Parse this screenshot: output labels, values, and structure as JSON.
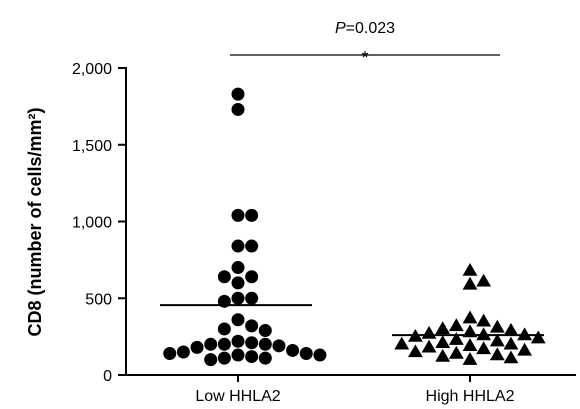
{
  "chart_data": {
    "type": "scatter",
    "ylabel": "CD8 (number of cells/mm²)",
    "categories": [
      "Low HHLA2",
      "High HHLA2"
    ],
    "yticks": [
      "0",
      "500",
      "1,000",
      "1,500",
      "2,000"
    ],
    "ylim": [
      0,
      2000
    ],
    "series": [
      {
        "category": "Low HHLA2",
        "marker": "circle",
        "mean": 455,
        "values": [
          1830,
          1730,
          1040,
          1040,
          840,
          840,
          700,
          640,
          640,
          600,
          500,
          500,
          480,
          360,
          320,
          300,
          290,
          220,
          210,
          200,
          200,
          200,
          190,
          180,
          160,
          150,
          140,
          140,
          130,
          130,
          120,
          110,
          110,
          100
        ]
      },
      {
        "category": "High HHLA2",
        "marker": "triangle",
        "mean": 260,
        "values": [
          680,
          610,
          590,
          370,
          350,
          320,
          310,
          300,
          290,
          280,
          270,
          260,
          260,
          250,
          240,
          230,
          220,
          210,
          200,
          200,
          190,
          180,
          170,
          160,
          150,
          140,
          130,
          120,
          110,
          100
        ]
      }
    ],
    "annotation": {
      "p_prefix": "P",
      "p_value": "=0.023",
      "star": "*"
    }
  }
}
